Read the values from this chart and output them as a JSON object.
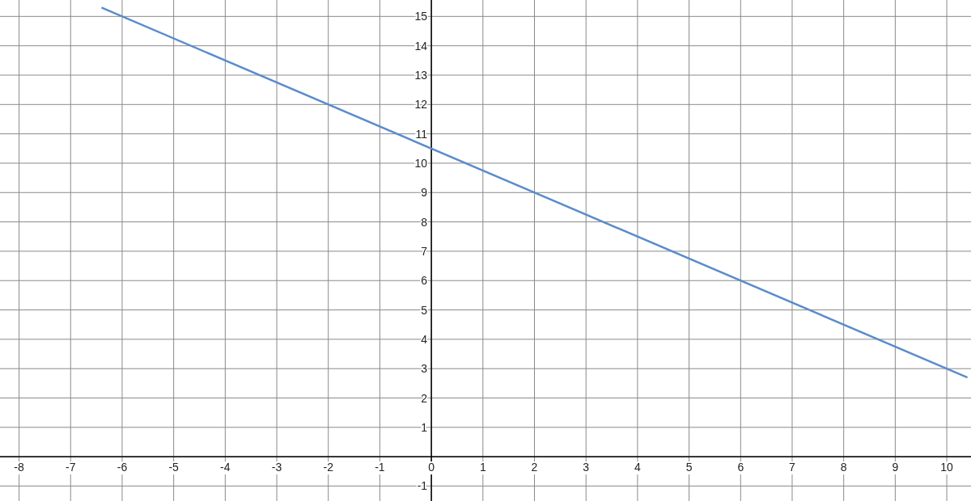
{
  "chart_data": {
    "type": "line",
    "xlim": [
      -8.37,
      10.47
    ],
    "ylim": [
      -1.51,
      15.56
    ],
    "xticks": [
      -8,
      -7,
      -6,
      -5,
      -4,
      -3,
      -2,
      -1,
      0,
      1,
      2,
      3,
      4,
      5,
      6,
      7,
      8,
      9,
      10
    ],
    "yticks": [
      -1,
      {
        "value": 0,
        "label": null
      },
      1,
      2,
      3,
      4,
      5,
      6,
      7,
      8,
      9,
      10,
      11,
      12,
      13,
      14,
      15
    ],
    "grid": true,
    "series": [
      {
        "color": "#5b8ccb",
        "x": [
          -6.4,
          10.4
        ],
        "values": [
          15.3,
          2.7
        ]
      }
    ]
  }
}
